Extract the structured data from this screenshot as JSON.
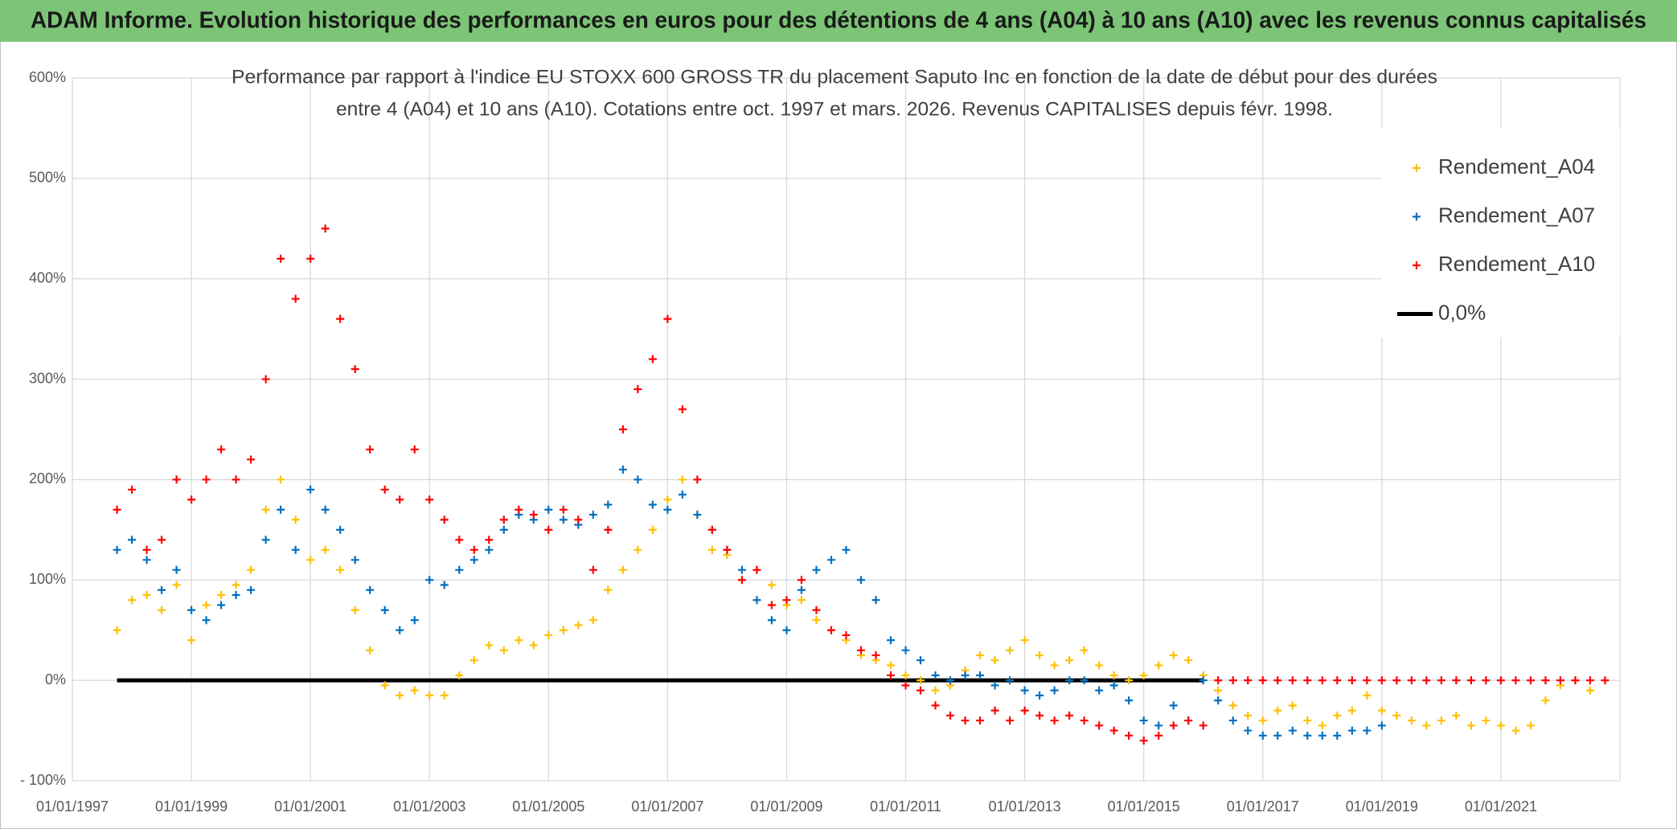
{
  "chart_data": {
    "type": "scatter",
    "title": "ADAM Informe. Evolution historique des performances en euros pour des détentions de 4 ans (A04) à 10 ans (A10) avec les revenus connus capitalisés",
    "subtitle": [
      "Performance par rapport à l'indice EU STOXX 600 GROSS TR  du placement Saputo Inc en fonction de la date de début pour des durées",
      "entre 4 (A04) et 10 ans (A10). Cotations entre oct. 1997 et mars. 2026. Revenus CAPITALISES depuis févr. 1998."
    ],
    "x": [
      "01/10/1997",
      "01/01/1998",
      "01/04/1998",
      "01/07/1998",
      "01/10/1998",
      "01/01/1999",
      "01/04/1999",
      "01/07/1999",
      "01/10/1999",
      "01/01/2000",
      "01/04/2000",
      "01/07/2000",
      "01/10/2000",
      "01/01/2001",
      "01/04/2001",
      "01/07/2001",
      "01/10/2001",
      "01/01/2002",
      "01/04/2002",
      "01/07/2002",
      "01/10/2002",
      "01/01/2003",
      "01/04/2003",
      "01/07/2003",
      "01/10/2003",
      "01/01/2004",
      "01/04/2004",
      "01/07/2004",
      "01/10/2004",
      "01/01/2005",
      "01/04/2005",
      "01/07/2005",
      "01/10/2005",
      "01/01/2006",
      "01/04/2006",
      "01/07/2006",
      "01/10/2006",
      "01/01/2007",
      "01/04/2007",
      "01/07/2007",
      "01/10/2007",
      "01/01/2008",
      "01/04/2008",
      "01/07/2008",
      "01/10/2008",
      "01/01/2009",
      "01/04/2009",
      "01/07/2009",
      "01/10/2009",
      "01/01/2010",
      "01/04/2010",
      "01/07/2010",
      "01/10/2010",
      "01/01/2011",
      "01/04/2011",
      "01/07/2011",
      "01/10/2011",
      "01/01/2012",
      "01/04/2012",
      "01/07/2012",
      "01/10/2012",
      "01/01/2013",
      "01/04/2013",
      "01/07/2013",
      "01/10/2013",
      "01/01/2014",
      "01/04/2014",
      "01/07/2014",
      "01/10/2014",
      "01/01/2015",
      "01/04/2015",
      "01/07/2015",
      "01/10/2015",
      "01/01/2016",
      "01/04/2016",
      "01/07/2016",
      "01/10/2016",
      "01/01/2017",
      "01/04/2017",
      "01/07/2017",
      "01/10/2017",
      "01/01/2018",
      "01/04/2018",
      "01/07/2018",
      "01/10/2018",
      "01/01/2019",
      "01/04/2019",
      "01/07/2019",
      "01/10/2019",
      "01/01/2020",
      "01/04/2020",
      "01/07/2020",
      "01/10/2020",
      "01/01/2021",
      "01/04/2021",
      "01/07/2021",
      "01/10/2021",
      "01/01/2022",
      "01/04/2022",
      "01/07/2022",
      "01/10/2022"
    ],
    "series": [
      {
        "name": "Rendement_A04",
        "color": "#ffc000",
        "mode": "markers",
        "values": [
          50,
          80,
          85,
          70,
          95,
          40,
          75,
          85,
          95,
          110,
          170,
          200,
          160,
          120,
          130,
          110,
          70,
          30,
          -5,
          -15,
          -10,
          -15,
          -15,
          5,
          20,
          35,
          30,
          40,
          35,
          45,
          50,
          55,
          60,
          90,
          110,
          130,
          150,
          180,
          200,
          165,
          130,
          125,
          100,
          110,
          95,
          75,
          80,
          60,
          50,
          40,
          25,
          20,
          15,
          5,
          0,
          -10,
          -5,
          10,
          25,
          20,
          30,
          40,
          25,
          15,
          20,
          30,
          15,
          5,
          0,
          5,
          15,
          25,
          20,
          5,
          -10,
          -25,
          -35,
          -40,
          -30,
          -25,
          -40,
          -45,
          -35,
          -30,
          -15,
          -30,
          -35,
          -40,
          -45,
          -40,
          -35,
          -45,
          -40,
          -45,
          -50,
          -45,
          -20,
          -5,
          0,
          -10,
          null
        ]
      },
      {
        "name": "Rendement_A07",
        "color": "#0070c0",
        "mode": "markers",
        "values": [
          130,
          140,
          120,
          90,
          110,
          70,
          60,
          75,
          85,
          90,
          140,
          170,
          130,
          190,
          170,
          150,
          120,
          90,
          70,
          50,
          60,
          100,
          95,
          110,
          120,
          130,
          150,
          165,
          160,
          170,
          160,
          155,
          165,
          175,
          210,
          200,
          175,
          170,
          185,
          165,
          150,
          130,
          110,
          80,
          60,
          50,
          90,
          110,
          120,
          130,
          100,
          80,
          40,
          30,
          20,
          5,
          0,
          5,
          5,
          -5,
          0,
          -10,
          -15,
          -10,
          0,
          0,
          -10,
          -5,
          -20,
          -40,
          -45,
          -25,
          -40,
          0,
          -20,
          -40,
          -50,
          -55,
          -55,
          -50,
          -55,
          -55,
          -55,
          -50,
          -50,
          -45,
          null,
          null,
          null,
          null,
          null,
          null,
          null,
          null,
          null,
          null,
          null,
          null,
          null,
          null,
          null
        ]
      },
      {
        "name": "Rendement_A10",
        "color": "#ff0000",
        "mode": "markers",
        "values": [
          170,
          190,
          130,
          140,
          200,
          180,
          200,
          230,
          200,
          220,
          300,
          420,
          380,
          420,
          450,
          360,
          310,
          230,
          190,
          180,
          230,
          180,
          160,
          140,
          130,
          140,
          160,
          170,
          165,
          150,
          170,
          160,
          110,
          150,
          250,
          290,
          320,
          360,
          270,
          200,
          150,
          130,
          100,
          110,
          75,
          80,
          100,
          70,
          50,
          45,
          30,
          25,
          5,
          -5,
          -10,
          -25,
          -35,
          -40,
          -40,
          -30,
          -40,
          -30,
          -35,
          -40,
          -35,
          -40,
          -45,
          -50,
          -55,
          -60,
          -55,
          -45,
          -40,
          -45,
          0,
          0,
          0,
          0,
          0,
          0,
          0,
          0,
          0,
          0,
          0,
          0,
          0,
          0,
          0,
          0,
          0,
          0,
          0,
          0,
          0,
          0,
          0,
          0,
          0,
          0,
          0
        ]
      },
      {
        "name": "0,0%",
        "color": "#000000",
        "mode": "line",
        "values": [
          0,
          0,
          0,
          0,
          0,
          0,
          0,
          0,
          0,
          0,
          0,
          0,
          0,
          0,
          0,
          0,
          0,
          0,
          0,
          0,
          0,
          0,
          0,
          0,
          0,
          0,
          0,
          0,
          0,
          0,
          0,
          0,
          0,
          0,
          0,
          0,
          0,
          0,
          0,
          0,
          0,
          0,
          0,
          0,
          0,
          0,
          0,
          0,
          0,
          0,
          0,
          0,
          0,
          0,
          0,
          0,
          0,
          0,
          0,
          0,
          0,
          0,
          0,
          0,
          0,
          0,
          0,
          0,
          0,
          0,
          0,
          0,
          0,
          0,
          null,
          null,
          null,
          null,
          null,
          null,
          null,
          null,
          null,
          null,
          null,
          null,
          null,
          null,
          null,
          null,
          null,
          null,
          null,
          null,
          null,
          null,
          null,
          null,
          null,
          null,
          null
        ]
      }
    ],
    "xlim": [
      "01/01/1997",
      "01/01/2023"
    ],
    "xticks": [
      "01/01/1997",
      "01/01/1999",
      "01/01/2001",
      "01/01/2003",
      "01/01/2005",
      "01/01/2007",
      "01/01/2009",
      "01/01/2011",
      "01/01/2013",
      "01/01/2015",
      "01/01/2017",
      "01/01/2019",
      "01/01/2021"
    ],
    "ylim": [
      -100,
      600
    ],
    "yticks": [
      {
        "value": -100,
        "label": "- 100%"
      },
      {
        "value": 0,
        "label": "0%"
      },
      {
        "value": 100,
        "label": "100%"
      },
      {
        "value": 200,
        "label": "200%"
      },
      {
        "value": 300,
        "label": "300%"
      },
      {
        "value": 400,
        "label": "400%"
      },
      {
        "value": 500,
        "label": "500%"
      },
      {
        "value": 600,
        "label": "600%"
      }
    ],
    "grid": true,
    "legend": "top-right"
  }
}
